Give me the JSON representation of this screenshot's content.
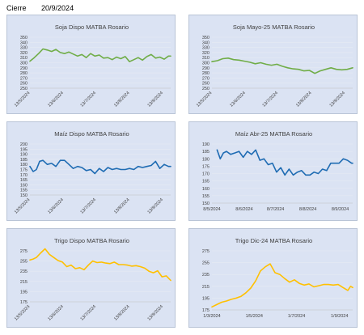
{
  "header": {
    "label": "Cierre",
    "date": "20/9/2024"
  },
  "chart_data": [
    {
      "type": "line",
      "title": "Soja Dispo MATBA Rosario",
      "color": "#70ad47",
      "ylim": [
        250,
        350
      ],
      "yticks": [
        250,
        260,
        270,
        280,
        290,
        300,
        310,
        320,
        330,
        340,
        350
      ],
      "xmin": "2024-05-13",
      "xmax": "2024-09-20",
      "xticks": [
        "13/5/2024",
        "13/6/2024",
        "13/7/2024",
        "13/8/2024",
        "13/9/2024"
      ],
      "xtick_dates": [
        "2024-05-13",
        "2024-06-13",
        "2024-07-13",
        "2024-08-13",
        "2024-09-13"
      ],
      "xtick_rotate": true,
      "x": [
        "2024-05-13",
        "2024-05-17",
        "2024-05-21",
        "2024-05-25",
        "2024-05-29",
        "2024-06-02",
        "2024-06-06",
        "2024-06-10",
        "2024-06-14",
        "2024-06-18",
        "2024-06-22",
        "2024-06-26",
        "2024-06-30",
        "2024-07-04",
        "2024-07-08",
        "2024-07-12",
        "2024-07-16",
        "2024-07-20",
        "2024-07-24",
        "2024-07-28",
        "2024-08-01",
        "2024-08-05",
        "2024-08-09",
        "2024-08-13",
        "2024-08-17",
        "2024-08-21",
        "2024-08-25",
        "2024-08-29",
        "2024-09-02",
        "2024-09-06",
        "2024-09-10",
        "2024-09-14",
        "2024-09-18",
        "2024-09-20"
      ],
      "values": [
        303,
        310,
        318,
        327,
        325,
        322,
        326,
        320,
        318,
        321,
        317,
        313,
        316,
        310,
        318,
        313,
        315,
        309,
        310,
        306,
        311,
        308,
        312,
        302,
        306,
        310,
        305,
        312,
        316,
        309,
        311,
        307,
        313,
        313
      ]
    },
    {
      "type": "line",
      "title": "Soja Mayo-25 MATBA Rosario",
      "color": "#70ad47",
      "ylim": [
        250,
        350
      ],
      "yticks": [
        250,
        260,
        270,
        280,
        290,
        300,
        310,
        320,
        330,
        340,
        350
      ],
      "xmin": "2024-05-13",
      "xmax": "2024-09-20",
      "xticks": [
        "13/5/2024",
        "13/6/2024",
        "13/7/2024",
        "13/8/2024",
        "13/9/2024"
      ],
      "xtick_dates": [
        "2024-05-13",
        "2024-06-13",
        "2024-07-13",
        "2024-08-13",
        "2024-09-13"
      ],
      "xtick_rotate": true,
      "x": [
        "2024-05-13",
        "2024-05-18",
        "2024-05-23",
        "2024-05-28",
        "2024-06-02",
        "2024-06-07",
        "2024-06-12",
        "2024-06-17",
        "2024-06-22",
        "2024-06-27",
        "2024-07-02",
        "2024-07-07",
        "2024-07-12",
        "2024-07-17",
        "2024-07-22",
        "2024-07-27",
        "2024-08-01",
        "2024-08-06",
        "2024-08-11",
        "2024-08-16",
        "2024-08-21",
        "2024-08-26",
        "2024-08-31",
        "2024-09-05",
        "2024-09-10",
        "2024-09-15",
        "2024-09-20"
      ],
      "values": [
        302,
        304,
        308,
        309,
        306,
        305,
        303,
        301,
        298,
        300,
        297,
        295,
        297,
        293,
        290,
        288,
        287,
        284,
        285,
        279,
        284,
        287,
        290,
        287,
        286,
        287,
        290
      ]
    },
    {
      "type": "line",
      "title": "Maíz Dispo MATBA Rosario",
      "color": "#1f6cb3",
      "ylim": [
        150,
        200
      ],
      "yticks": [
        150,
        155,
        160,
        165,
        170,
        175,
        180,
        185,
        190,
        195,
        200
      ],
      "xmin": "2024-05-13",
      "xmax": "2024-09-20",
      "xticks": [
        "13/5/2024",
        "13/6/2024",
        "13/7/2024",
        "13/8/2024",
        "13/9/2024"
      ],
      "xtick_dates": [
        "2024-05-13",
        "2024-06-13",
        "2024-07-13",
        "2024-08-13",
        "2024-09-13"
      ],
      "xtick_rotate": true,
      "x": [
        "2024-05-13",
        "2024-05-16",
        "2024-05-19",
        "2024-05-22",
        "2024-05-25",
        "2024-05-29",
        "2024-06-02",
        "2024-06-06",
        "2024-06-10",
        "2024-06-14",
        "2024-06-18",
        "2024-06-22",
        "2024-06-26",
        "2024-06-30",
        "2024-07-04",
        "2024-07-08",
        "2024-07-12",
        "2024-07-16",
        "2024-07-20",
        "2024-07-24",
        "2024-07-28",
        "2024-08-01",
        "2024-08-05",
        "2024-08-09",
        "2024-08-13",
        "2024-08-17",
        "2024-08-21",
        "2024-08-25",
        "2024-08-29",
        "2024-09-02",
        "2024-09-06",
        "2024-09-10",
        "2024-09-14",
        "2024-09-18",
        "2024-09-20"
      ],
      "values": [
        178,
        173,
        175,
        183,
        184,
        180,
        181,
        178,
        184,
        184,
        180,
        176,
        178,
        177,
        174,
        175,
        171,
        176,
        173,
        177,
        175,
        176,
        175,
        175,
        176,
        175,
        178,
        177,
        178,
        179,
        183,
        176,
        180,
        178,
        178
      ]
    },
    {
      "type": "line",
      "title": "Maíz Abr-25 MATBA Rosario",
      "color": "#1f6cb3",
      "ylim": [
        150,
        190
      ],
      "yticks": [
        150,
        155,
        160,
        165,
        170,
        175,
        180,
        185,
        190
      ],
      "xmin": "2024-05-08",
      "xmax": "2024-09-20",
      "xticks": [
        "8/5/2024",
        "8/6/2024",
        "8/7/2024",
        "8/8/2024",
        "8/9/2024"
      ],
      "xtick_dates": [
        "2024-05-08",
        "2024-06-08",
        "2024-07-08",
        "2024-08-08",
        "2024-09-08"
      ],
      "xtick_rotate": false,
      "x": [
        "2024-05-13",
        "2024-05-16",
        "2024-05-19",
        "2024-05-22",
        "2024-05-26",
        "2024-05-30",
        "2024-06-03",
        "2024-06-07",
        "2024-06-11",
        "2024-06-15",
        "2024-06-19",
        "2024-06-23",
        "2024-06-27",
        "2024-07-01",
        "2024-07-05",
        "2024-07-09",
        "2024-07-13",
        "2024-07-17",
        "2024-07-21",
        "2024-07-25",
        "2024-07-29",
        "2024-08-02",
        "2024-08-06",
        "2024-08-10",
        "2024-08-14",
        "2024-08-18",
        "2024-08-22",
        "2024-08-26",
        "2024-08-30",
        "2024-09-03",
        "2024-09-07",
        "2024-09-11",
        "2024-09-15",
        "2024-09-19",
        "2024-09-20"
      ],
      "values": [
        186,
        180,
        184,
        185,
        183,
        184,
        185,
        181,
        185,
        183,
        186,
        179,
        180,
        176,
        177,
        171,
        174,
        169,
        173,
        169,
        171,
        172,
        169,
        169,
        171,
        170,
        173,
        172,
        177,
        177,
        177,
        180,
        179,
        177,
        177
      ]
    },
    {
      "type": "line",
      "title": "Trigo Dispo MATBA Rosario",
      "color": "#ffc000",
      "ylim": [
        175,
        275
      ],
      "yticks": [
        175,
        195,
        215,
        235,
        255,
        275
      ],
      "xmin": "2024-05-13",
      "xmax": "2024-09-20",
      "xticks": [
        "13/5/2024",
        "13/6/2024",
        "13/7/2024",
        "13/8/2024",
        "13/9/2024"
      ],
      "xtick_dates": [
        "2024-05-13",
        "2024-06-13",
        "2024-07-13",
        "2024-08-13",
        "2024-09-13"
      ],
      "xtick_rotate": true,
      "x": [
        "2024-05-13",
        "2024-05-16",
        "2024-05-19",
        "2024-05-23",
        "2024-05-27",
        "2024-05-31",
        "2024-06-04",
        "2024-06-08",
        "2024-06-12",
        "2024-06-16",
        "2024-06-20",
        "2024-06-24",
        "2024-06-28",
        "2024-07-02",
        "2024-07-06",
        "2024-07-10",
        "2024-07-14",
        "2024-07-18",
        "2024-07-22",
        "2024-07-26",
        "2024-07-30",
        "2024-08-03",
        "2024-08-07",
        "2024-08-11",
        "2024-08-15",
        "2024-08-19",
        "2024-08-23",
        "2024-08-27",
        "2024-08-31",
        "2024-09-04",
        "2024-09-08",
        "2024-09-12",
        "2024-09-16",
        "2024-09-20"
      ],
      "values": [
        257,
        259,
        262,
        271,
        279,
        268,
        262,
        256,
        253,
        244,
        247,
        240,
        242,
        238,
        247,
        255,
        252,
        253,
        251,
        250,
        253,
        248,
        248,
        247,
        245,
        246,
        244,
        241,
        235,
        232,
        236,
        224,
        226,
        217
      ]
    },
    {
      "type": "line",
      "title": "Trigo Dic-24 MATBA Rosario",
      "color": "#ffc000",
      "ylim": [
        175,
        275
      ],
      "yticks": [
        175,
        195,
        215,
        235,
        255,
        275
      ],
      "xmin": "2024-03-01",
      "xmax": "2024-09-20",
      "xticks": [
        "1/3/2024",
        "1/5/2024",
        "1/7/2024",
        "1/9/2024"
      ],
      "xtick_dates": [
        "2024-03-01",
        "2024-05-01",
        "2024-07-01",
        "2024-09-01"
      ],
      "xtick_rotate": false,
      "x": [
        "2024-03-01",
        "2024-03-08",
        "2024-03-15",
        "2024-03-22",
        "2024-03-29",
        "2024-04-05",
        "2024-04-12",
        "2024-04-19",
        "2024-04-26",
        "2024-05-03",
        "2024-05-10",
        "2024-05-17",
        "2024-05-24",
        "2024-05-31",
        "2024-06-07",
        "2024-06-14",
        "2024-06-21",
        "2024-06-28",
        "2024-07-05",
        "2024-07-12",
        "2024-07-19",
        "2024-07-26",
        "2024-08-02",
        "2024-08-09",
        "2024-08-16",
        "2024-08-23",
        "2024-08-30",
        "2024-09-06",
        "2024-09-13",
        "2024-09-17",
        "2024-09-20"
      ],
      "values": [
        180,
        184,
        188,
        190,
        193,
        195,
        198,
        204,
        212,
        224,
        241,
        248,
        253,
        238,
        235,
        228,
        222,
        226,
        220,
        217,
        219,
        214,
        216,
        218,
        218,
        217,
        218,
        213,
        208,
        215,
        213
      ]
    }
  ]
}
